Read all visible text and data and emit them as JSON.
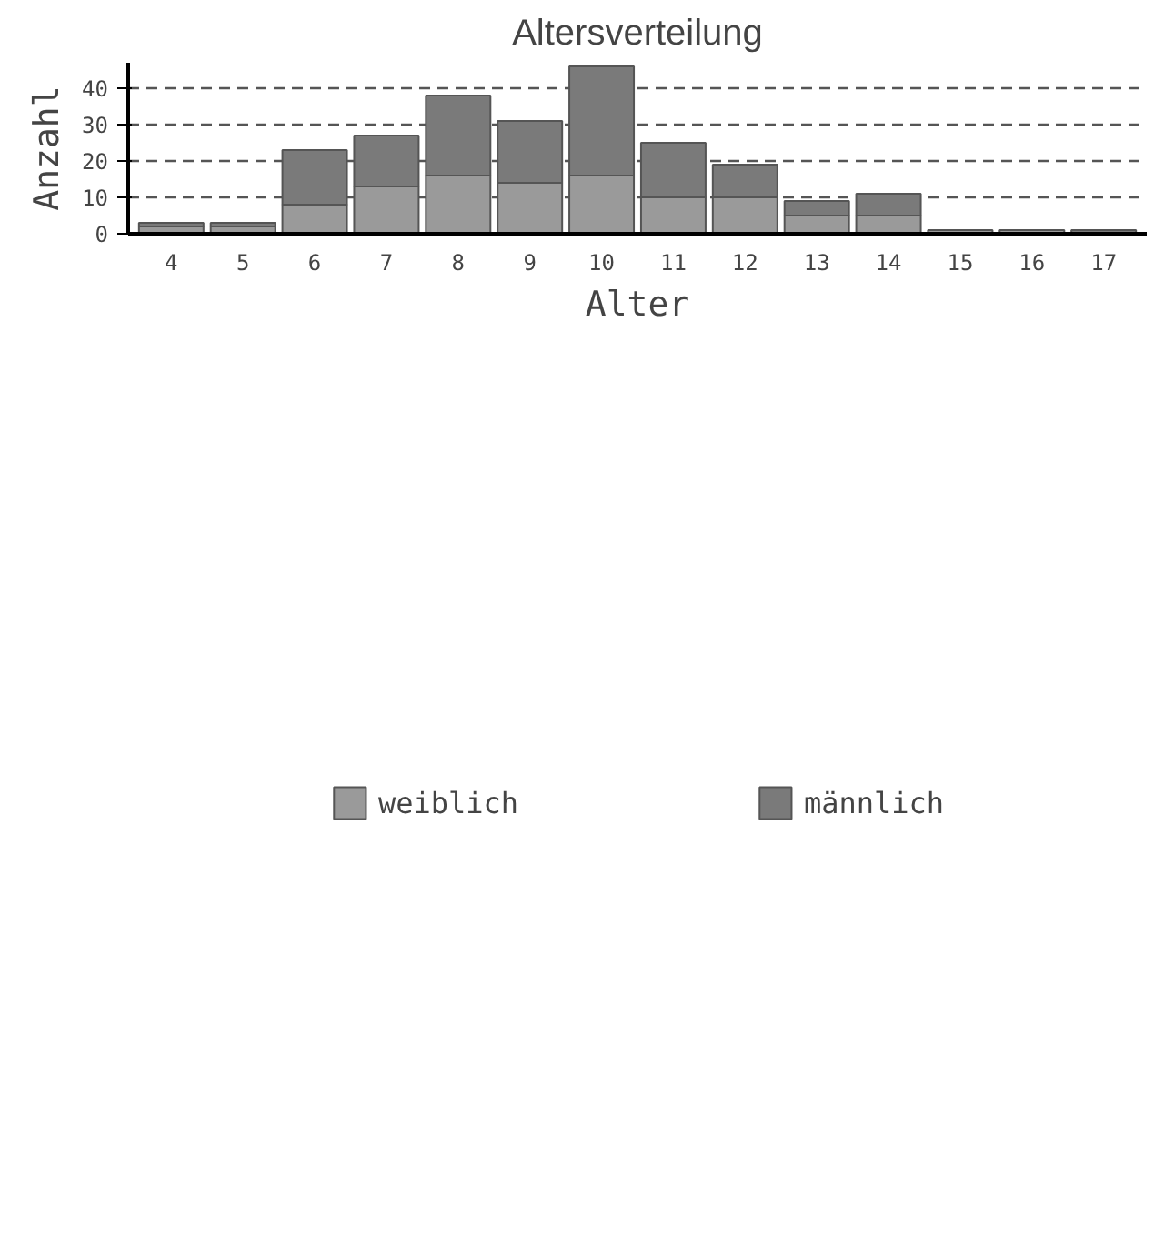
{
  "chart_data": {
    "type": "bar",
    "title": "Altersverteilung",
    "xlabel": "Alter",
    "ylabel": "Anzahl",
    "categories": [
      "4",
      "5",
      "6",
      "7",
      "8",
      "9",
      "10",
      "11",
      "12",
      "13",
      "14",
      "15",
      "16",
      "17"
    ],
    "stacked": true,
    "series": [
      {
        "name": "weiblich",
        "color": "#9a9a9a",
        "values": [
          2,
          2,
          8,
          13,
          16,
          14,
          16,
          10,
          10,
          5,
          5,
          1,
          1,
          0
        ]
      },
      {
        "name": "männlich",
        "color": "#7a7a7a",
        "values": [
          1,
          1,
          15,
          14,
          22,
          17,
          30,
          15,
          9,
          4,
          6,
          0,
          0,
          1
        ]
      }
    ],
    "ylim": [
      0,
      47
    ],
    "yticks": [
      0,
      10,
      20,
      30,
      40
    ],
    "grid": "y",
    "legend": "bottom"
  }
}
